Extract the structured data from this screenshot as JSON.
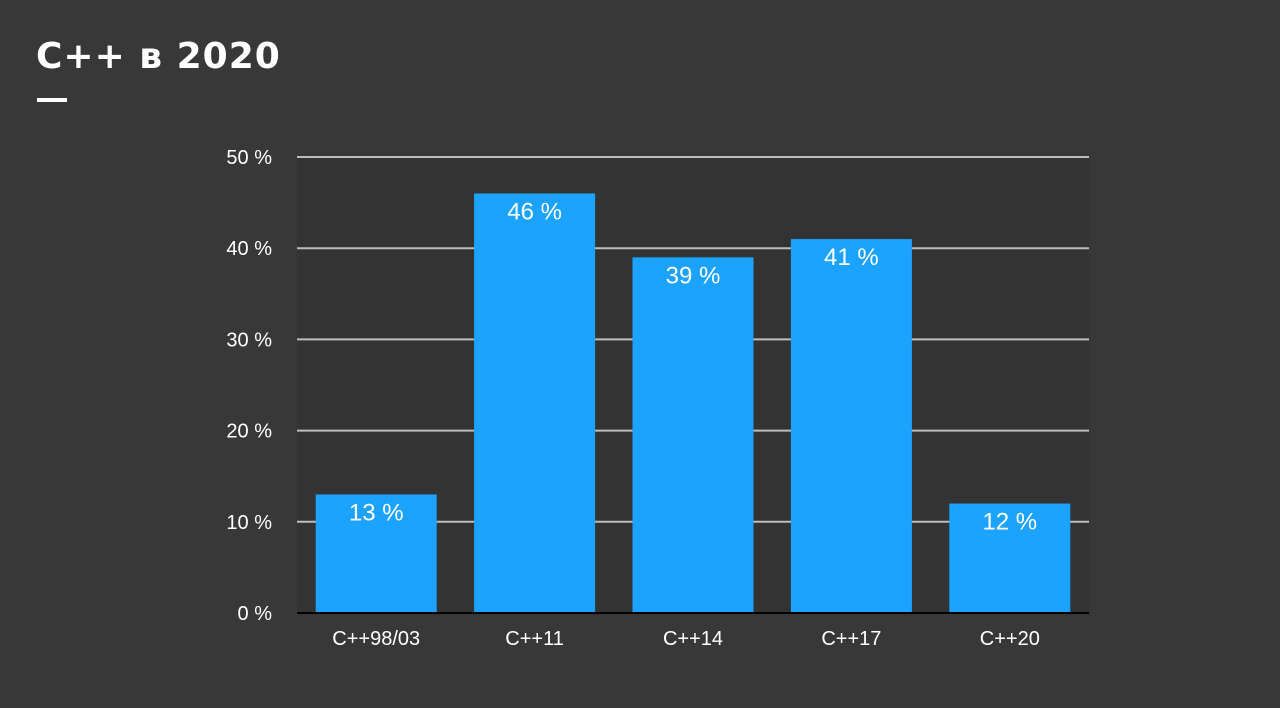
{
  "slide": {
    "title": "C++ в 2020"
  },
  "chart_data": {
    "type": "bar",
    "categories": [
      "C++98/03",
      "C++11",
      "C++14",
      "C++17",
      "C++20"
    ],
    "values": [
      13,
      46,
      39,
      41,
      12
    ],
    "data_labels": [
      "13 %",
      "46 %",
      "39 %",
      "41 %",
      "12 %"
    ],
    "yticks": [
      0,
      10,
      20,
      30,
      40,
      50
    ],
    "ytick_labels": [
      "0 %",
      "10 %",
      "20 %",
      "30 %",
      "40 %",
      "50 %"
    ],
    "ylim": [
      0,
      50
    ],
    "title": "",
    "xlabel": "",
    "ylabel": "",
    "grid": true,
    "legend": "none",
    "bar_color": "#1ca3ff",
    "grid_color": "#bdbdbd",
    "axis_color": "#000000"
  }
}
